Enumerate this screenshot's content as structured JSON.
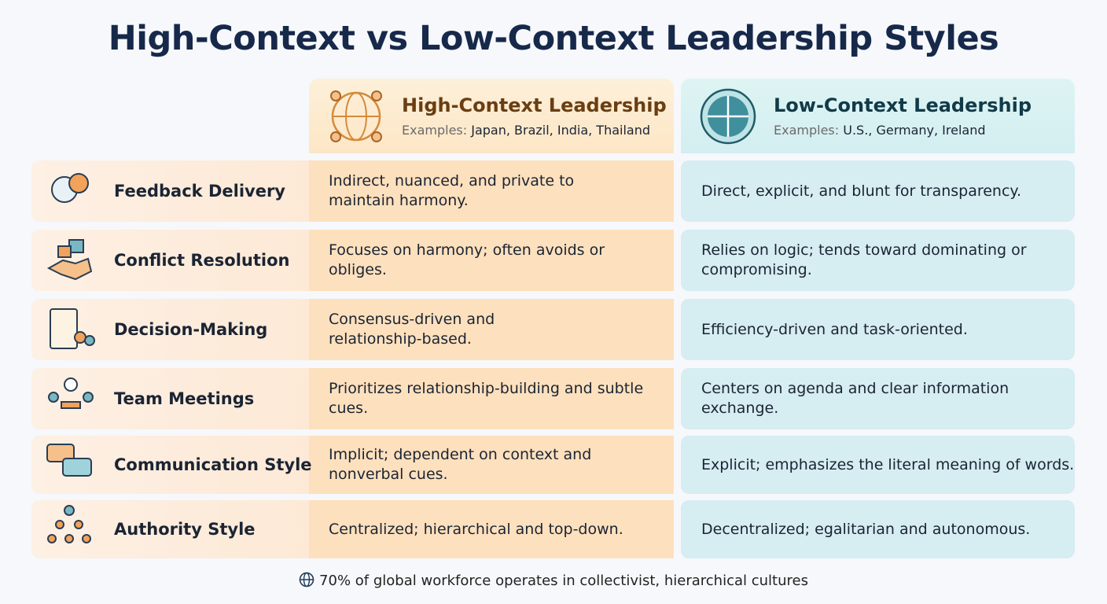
{
  "title": "High-Context vs Low-Context Leadership Styles",
  "columns": [
    {
      "title": "High-Context Leadership",
      "examples_label": "Examples:",
      "examples": "Japan, Brazil, India, Thailand"
    },
    {
      "title": "Low-Context Leadership",
      "examples_label": "Examples:",
      "examples": "U.S., Germany, Ireland"
    }
  ],
  "rows": [
    {
      "label": "Feedback Delivery",
      "high": [
        "Indirect, nuanced, and private to",
        "maintain harmony."
      ],
      "low": [
        "Direct, explicit, and blunt for transparency."
      ]
    },
    {
      "label": "Conflict Resolution",
      "high": [
        "Focuses on harmony; often avoids or",
        "obliges."
      ],
      "low": [
        "Relies on logic; tends toward dominating or",
        "compromising."
      ]
    },
    {
      "label": "Decision-Making",
      "high": [
        "Consensus-driven and",
        "relationship-based."
      ],
      "low": [
        "Efficiency-driven and task-oriented."
      ]
    },
    {
      "label": "Team Meetings",
      "high": [
        "Prioritizes relationship-building and subtle",
        "cues."
      ],
      "low": [
        "Centers on agenda and clear information",
        "exchange."
      ]
    },
    {
      "label": "Communication Style",
      "high": [
        "Implicit; dependent on context and",
        "nonverbal cues."
      ],
      "low": [
        "Explicit; emphasizes the literal meaning of words."
      ]
    },
    {
      "label": "Authority Style",
      "high": [
        "Centralized; hierarchical and top-down."
      ],
      "low": [
        "Decentralized; egalitarian and autonomous."
      ]
    }
  ],
  "footer": "70% of global workforce operates in collectivist, hierarchical cultures"
}
